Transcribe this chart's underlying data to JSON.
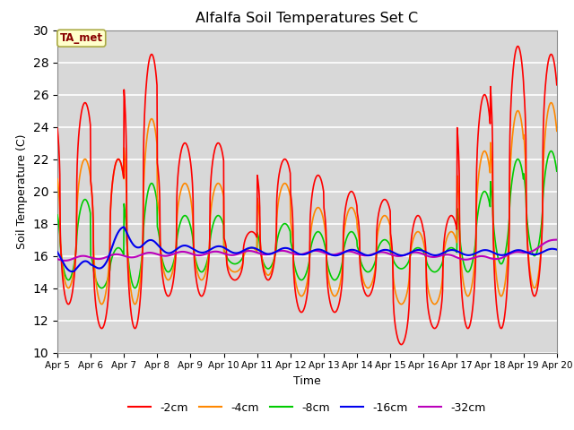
{
  "title": "Alfalfa Soil Temperatures Set C",
  "xlabel": "Time",
  "ylabel": "Soil Temperature (C)",
  "ylim": [
    10,
    30
  ],
  "xlim": [
    0,
    15
  ],
  "x_tick_labels": [
    "Apr 5",
    "Apr 6",
    "Apr 7",
    "Apr 8",
    "Apr 9",
    "Apr 10",
    "Apr 11",
    "Apr 12",
    "Apr 13",
    "Apr 14",
    "Apr 15",
    "Apr 16",
    "Apr 17",
    "Apr 18",
    "Apr 19",
    "Apr 20"
  ],
  "colors": {
    "-2cm": "#ff0000",
    "-4cm": "#ff8800",
    "-8cm": "#00cc00",
    "-16cm": "#0000ee",
    "-32cm": "#bb00bb"
  },
  "legend_label": "TA_met",
  "legend_box_color": "#ffffcc",
  "legend_text_color": "#880000",
  "background_color": "#d8d8d8",
  "grid_color": "#ffffff",
  "title_color": "#000000",
  "spine_color": "#888888"
}
